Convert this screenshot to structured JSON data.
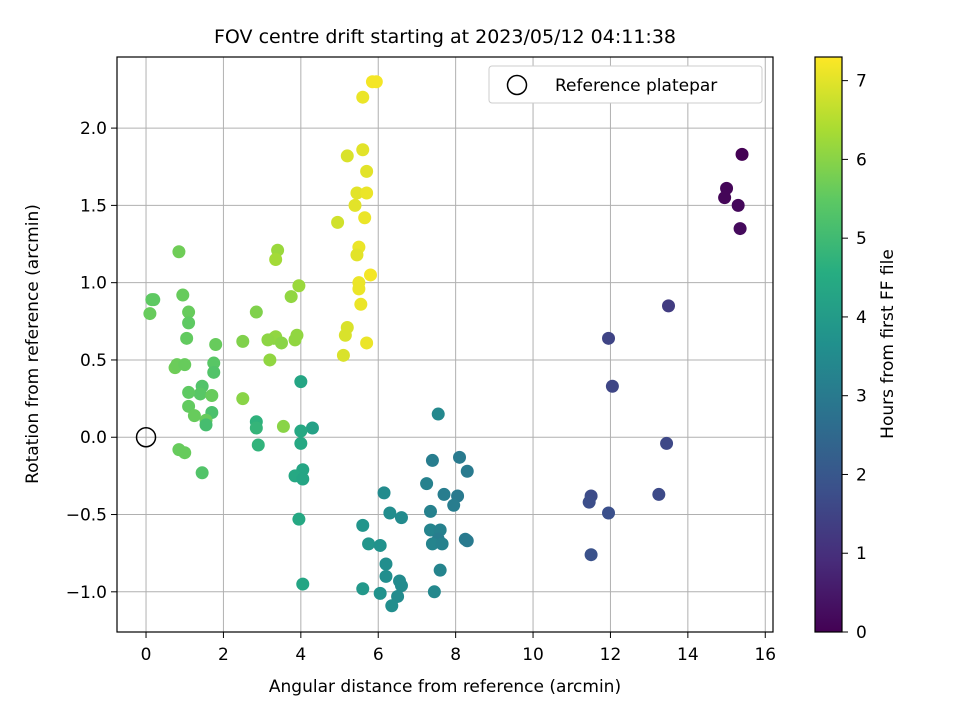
{
  "chart_data": {
    "type": "scatter",
    "title": "FOV centre drift starting at 2023/05/12 04:11:38",
    "xlabel": "Angular distance from reference (arcmin)",
    "ylabel": "Rotation from reference (arcmin)",
    "xlim": [
      -0.75,
      16.2
    ],
    "ylim": [
      -1.26,
      2.46
    ],
    "xticks": [
      "0",
      "2",
      "4",
      "6",
      "8",
      "10",
      "12",
      "14",
      "16"
    ],
    "yticks": [
      "−1.0",
      "−0.5",
      "0.0",
      "0.5",
      "1.0",
      "1.5",
      "2.0"
    ],
    "grid": true,
    "legend": {
      "position": "top-right",
      "label": "Reference platepar"
    },
    "reference_point": {
      "x": 0,
      "y": 0
    },
    "colorbar": {
      "label": "Hours from first FF file",
      "range": [
        0,
        7.3
      ],
      "ticks": [
        "0",
        "1",
        "2",
        "3",
        "4",
        "5",
        "6",
        "7"
      ],
      "colormap": "viridis"
    },
    "points": [
      {
        "x": 15.4,
        "y": 1.83,
        "c": 0.0
      },
      {
        "x": 15.0,
        "y": 1.61,
        "c": 0.1
      },
      {
        "x": 14.95,
        "y": 1.55,
        "c": 0.1
      },
      {
        "x": 15.3,
        "y": 1.5,
        "c": 0.15
      },
      {
        "x": 15.35,
        "y": 1.35,
        "c": 0.2
      },
      {
        "x": 13.5,
        "y": 0.85,
        "c": 1.3
      },
      {
        "x": 11.95,
        "y": 0.64,
        "c": 1.5
      },
      {
        "x": 12.05,
        "y": 0.33,
        "c": 1.55
      },
      {
        "x": 13.45,
        "y": -0.04,
        "c": 1.6
      },
      {
        "x": 13.25,
        "y": -0.37,
        "c": 1.65
      },
      {
        "x": 11.5,
        "y": -0.38,
        "c": 1.7
      },
      {
        "x": 11.45,
        "y": -0.42,
        "c": 1.75
      },
      {
        "x": 11.95,
        "y": -0.49,
        "c": 1.8
      },
      {
        "x": 11.5,
        "y": -0.76,
        "c": 1.85
      },
      {
        "x": 7.55,
        "y": 0.15,
        "c": 3.4
      },
      {
        "x": 8.1,
        "y": -0.13,
        "c": 3.0
      },
      {
        "x": 7.4,
        "y": -0.15,
        "c": 3.1
      },
      {
        "x": 8.3,
        "y": -0.22,
        "c": 3.0
      },
      {
        "x": 7.25,
        "y": -0.3,
        "c": 3.2
      },
      {
        "x": 7.7,
        "y": -0.37,
        "c": 3.1
      },
      {
        "x": 8.05,
        "y": -0.38,
        "c": 3.0
      },
      {
        "x": 7.95,
        "y": -0.44,
        "c": 3.1
      },
      {
        "x": 7.35,
        "y": -0.48,
        "c": 3.2
      },
      {
        "x": 7.35,
        "y": -0.6,
        "c": 3.3
      },
      {
        "x": 7.6,
        "y": -0.6,
        "c": 3.2
      },
      {
        "x": 7.55,
        "y": -0.66,
        "c": 3.1
      },
      {
        "x": 8.25,
        "y": -0.66,
        "c": 3.0
      },
      {
        "x": 8.3,
        "y": -0.67,
        "c": 3.0
      },
      {
        "x": 7.4,
        "y": -0.69,
        "c": 3.3
      },
      {
        "x": 7.65,
        "y": -0.69,
        "c": 3.2
      },
      {
        "x": 7.6,
        "y": -0.86,
        "c": 3.3
      },
      {
        "x": 7.45,
        "y": -1.0,
        "c": 3.4
      },
      {
        "x": 6.15,
        "y": -0.36,
        "c": 3.5
      },
      {
        "x": 6.3,
        "y": -0.49,
        "c": 3.55
      },
      {
        "x": 6.6,
        "y": -0.52,
        "c": 3.5
      },
      {
        "x": 5.6,
        "y": -0.57,
        "c": 3.8
      },
      {
        "x": 5.75,
        "y": -0.69,
        "c": 3.8
      },
      {
        "x": 6.05,
        "y": -0.7,
        "c": 3.7
      },
      {
        "x": 6.2,
        "y": -0.82,
        "c": 3.6
      },
      {
        "x": 6.2,
        "y": -0.9,
        "c": 3.6
      },
      {
        "x": 6.55,
        "y": -0.93,
        "c": 3.5
      },
      {
        "x": 6.6,
        "y": -0.96,
        "c": 3.5
      },
      {
        "x": 5.6,
        "y": -0.98,
        "c": 3.9
      },
      {
        "x": 6.05,
        "y": -1.01,
        "c": 3.7
      },
      {
        "x": 6.5,
        "y": -1.03,
        "c": 3.5
      },
      {
        "x": 6.35,
        "y": -1.09,
        "c": 3.6
      },
      {
        "x": 4.0,
        "y": 0.36,
        "c": 4.3
      },
      {
        "x": 4.3,
        "y": 0.06,
        "c": 4.2
      },
      {
        "x": 4.0,
        "y": 0.04,
        "c": 4.4
      },
      {
        "x": 4.0,
        "y": -0.04,
        "c": 4.4
      },
      {
        "x": 4.05,
        "y": -0.21,
        "c": 4.3
      },
      {
        "x": 3.85,
        "y": -0.25,
        "c": 4.4
      },
      {
        "x": 4.05,
        "y": -0.27,
        "c": 4.3
      },
      {
        "x": 3.95,
        "y": -0.53,
        "c": 4.4
      },
      {
        "x": 4.05,
        "y": -0.95,
        "c": 4.3
      },
      {
        "x": 2.85,
        "y": 0.1,
        "c": 4.7
      },
      {
        "x": 2.85,
        "y": 0.06,
        "c": 4.8
      },
      {
        "x": 2.9,
        "y": -0.05,
        "c": 4.75
      },
      {
        "x": 1.8,
        "y": 0.6,
        "c": 5.6
      },
      {
        "x": 1.75,
        "y": 0.48,
        "c": 5.4
      },
      {
        "x": 1.75,
        "y": 0.42,
        "c": 5.3
      },
      {
        "x": 1.45,
        "y": 0.33,
        "c": 5.3
      },
      {
        "x": 1.4,
        "y": 0.28,
        "c": 5.4
      },
      {
        "x": 1.7,
        "y": 0.27,
        "c": 5.6
      },
      {
        "x": 1.7,
        "y": 0.16,
        "c": 5.2
      },
      {
        "x": 1.55,
        "y": 0.11,
        "c": 5.6
      },
      {
        "x": 1.55,
        "y": 0.08,
        "c": 5.1
      },
      {
        "x": 1.45,
        "y": -0.23,
        "c": 5.3
      },
      {
        "x": 1.1,
        "y": 0.81,
        "c": 5.6
      },
      {
        "x": 1.1,
        "y": 0.74,
        "c": 5.5
      },
      {
        "x": 1.05,
        "y": 0.64,
        "c": 5.55
      },
      {
        "x": 1.1,
        "y": 0.29,
        "c": 5.5
      },
      {
        "x": 1.1,
        "y": 0.2,
        "c": 5.55
      },
      {
        "x": 1.25,
        "y": 0.14,
        "c": 5.6
      },
      {
        "x": 0.95,
        "y": 0.92,
        "c": 5.6
      },
      {
        "x": 0.85,
        "y": 1.2,
        "c": 5.7
      },
      {
        "x": 0.75,
        "y": 0.45,
        "c": 5.7
      },
      {
        "x": 0.8,
        "y": 0.47,
        "c": 5.65
      },
      {
        "x": 1.0,
        "y": 0.47,
        "c": 5.6
      },
      {
        "x": 0.85,
        "y": -0.08,
        "c": 5.6
      },
      {
        "x": 1.0,
        "y": -0.1,
        "c": 5.6
      },
      {
        "x": 0.15,
        "y": 0.89,
        "c": 5.5
      },
      {
        "x": 0.2,
        "y": 0.89,
        "c": 5.5
      },
      {
        "x": 0.1,
        "y": 0.8,
        "c": 5.6
      },
      {
        "x": 3.4,
        "y": 1.21,
        "c": 6.2
      },
      {
        "x": 3.35,
        "y": 1.15,
        "c": 6.3
      },
      {
        "x": 3.95,
        "y": 0.98,
        "c": 6.2
      },
      {
        "x": 3.75,
        "y": 0.91,
        "c": 6.1
      },
      {
        "x": 2.85,
        "y": 0.81,
        "c": 5.9
      },
      {
        "x": 3.3,
        "y": 0.64,
        "c": 6.0
      },
      {
        "x": 3.35,
        "y": 0.65,
        "c": 6.1
      },
      {
        "x": 3.15,
        "y": 0.63,
        "c": 6.05
      },
      {
        "x": 3.5,
        "y": 0.61,
        "c": 6.0
      },
      {
        "x": 3.85,
        "y": 0.63,
        "c": 6.1
      },
      {
        "x": 3.9,
        "y": 0.66,
        "c": 6.1
      },
      {
        "x": 2.5,
        "y": 0.62,
        "c": 5.9
      },
      {
        "x": 3.2,
        "y": 0.5,
        "c": 6.1
      },
      {
        "x": 2.5,
        "y": 0.25,
        "c": 6.0
      },
      {
        "x": 3.55,
        "y": 0.07,
        "c": 6.0
      },
      {
        "x": 5.85,
        "y": 2.3,
        "c": 7.2
      },
      {
        "x": 5.95,
        "y": 2.3,
        "c": 7.2
      },
      {
        "x": 5.6,
        "y": 2.2,
        "c": 7.1
      },
      {
        "x": 5.6,
        "y": 1.86,
        "c": 7.0
      },
      {
        "x": 5.2,
        "y": 1.82,
        "c": 6.9
      },
      {
        "x": 5.7,
        "y": 1.72,
        "c": 7.0
      },
      {
        "x": 5.45,
        "y": 1.58,
        "c": 7.0
      },
      {
        "x": 5.7,
        "y": 1.58,
        "c": 7.1
      },
      {
        "x": 5.4,
        "y": 1.5,
        "c": 7.0
      },
      {
        "x": 5.65,
        "y": 1.42,
        "c": 7.1
      },
      {
        "x": 4.95,
        "y": 1.39,
        "c": 6.8
      },
      {
        "x": 5.5,
        "y": 1.23,
        "c": 7.1
      },
      {
        "x": 5.45,
        "y": 1.18,
        "c": 7.0
      },
      {
        "x": 5.8,
        "y": 1.05,
        "c": 7.2
      },
      {
        "x": 5.5,
        "y": 1.0,
        "c": 7.1
      },
      {
        "x": 5.5,
        "y": 0.96,
        "c": 7.1
      },
      {
        "x": 5.55,
        "y": 0.86,
        "c": 7.1
      },
      {
        "x": 5.2,
        "y": 0.71,
        "c": 6.9
      },
      {
        "x": 5.15,
        "y": 0.66,
        "c": 6.9
      },
      {
        "x": 5.7,
        "y": 0.61,
        "c": 7.1
      },
      {
        "x": 5.1,
        "y": 0.53,
        "c": 6.9
      }
    ]
  }
}
